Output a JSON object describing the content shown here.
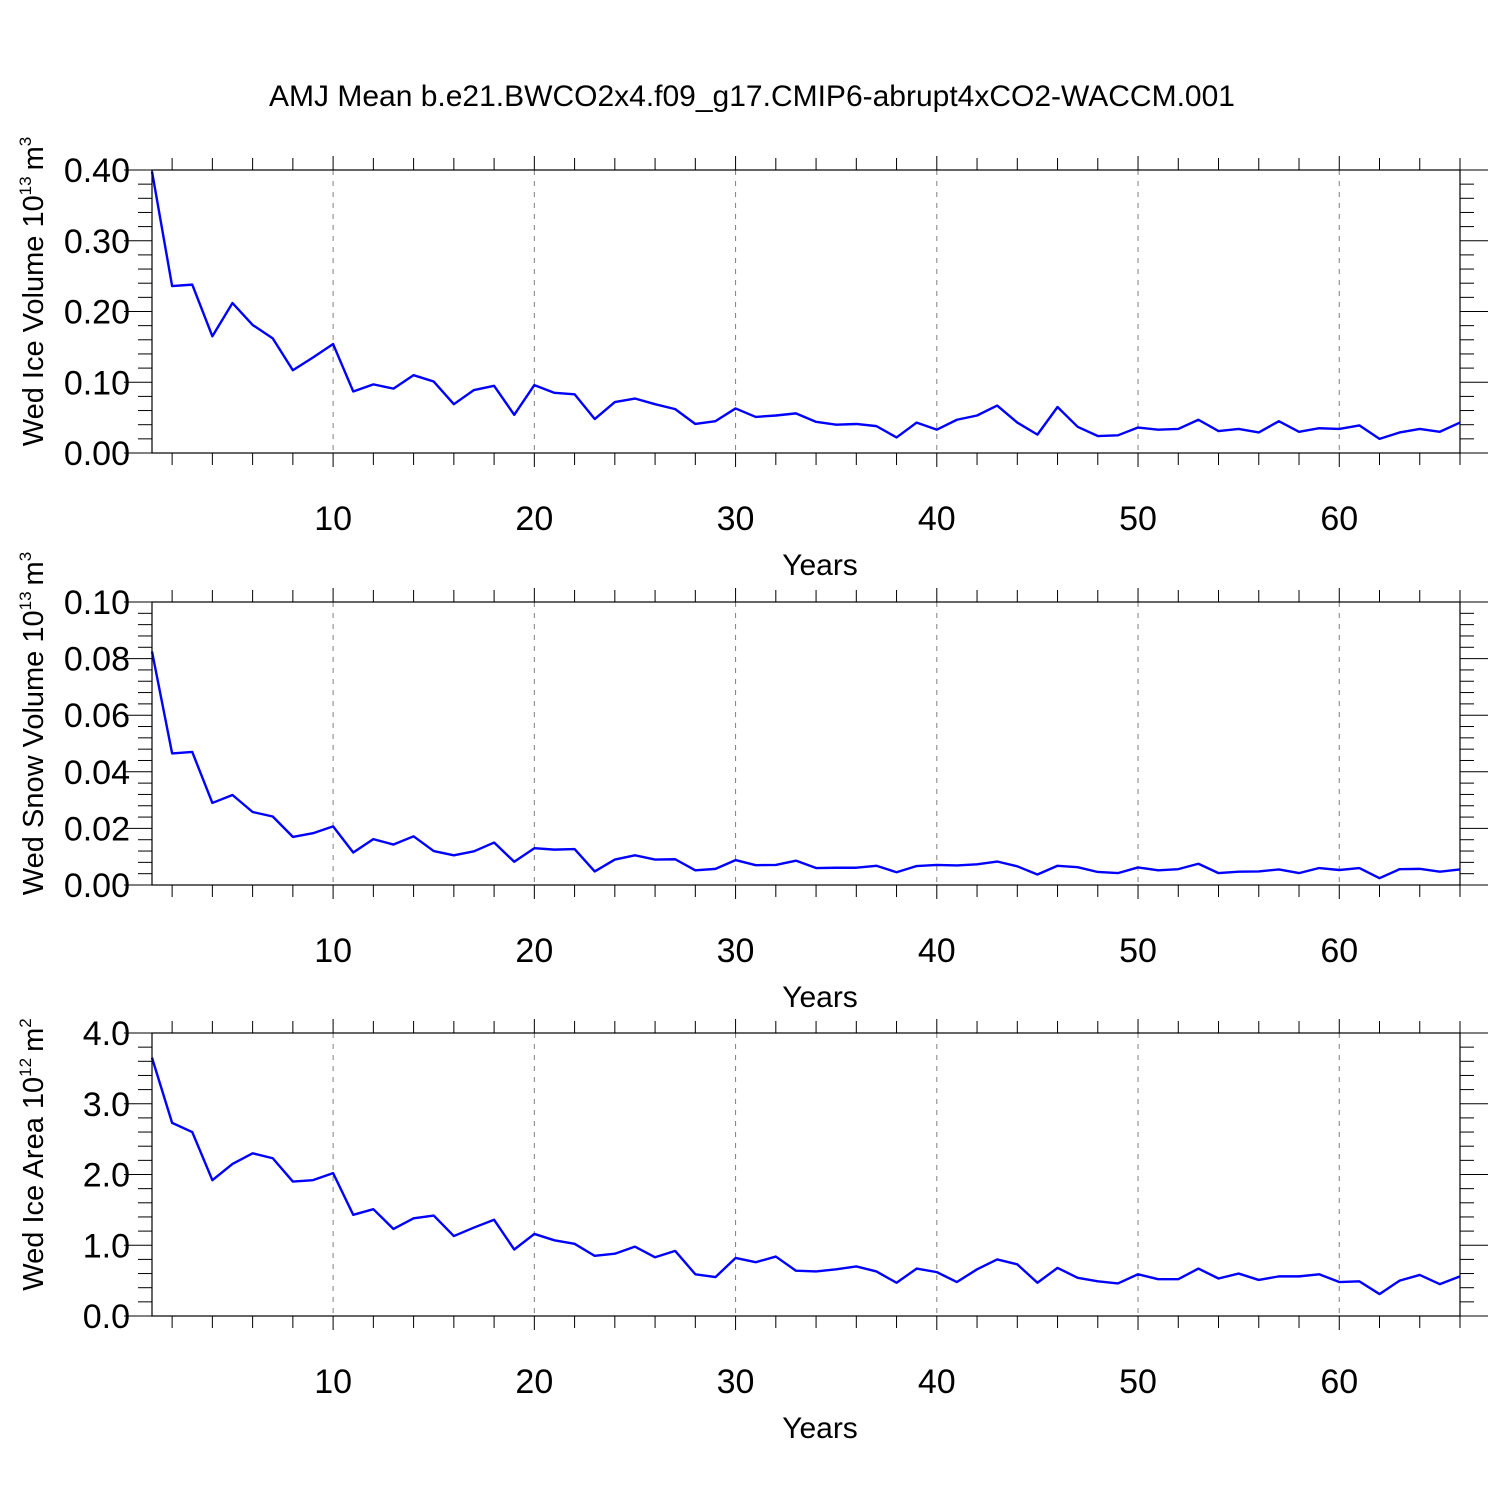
{
  "figure_title": "AMJ Mean b.e21.BWCO2x4.f09_g17.CMIP6-abrupt4xCO2-WACCM.001",
  "line_color": "#0000ff",
  "chart_data": [
    {
      "type": "line",
      "name": "ice-volume",
      "ylabel": {
        "text": "Wed Ice Volume 10",
        "exponent": "13",
        "unit": "m",
        "unit_exponent": "3"
      },
      "xlabel": "Years",
      "xlim": [
        1,
        66
      ],
      "ylim": [
        0,
        0.4
      ],
      "yticks": [
        "0.00",
        "0.10",
        "0.20",
        "0.30",
        "0.40"
      ],
      "ytick_values": [
        0,
        0.1,
        0.2,
        0.3,
        0.4
      ],
      "xticks": [
        "10",
        "20",
        "30",
        "40",
        "50",
        "60"
      ],
      "xtick_values": [
        10,
        20,
        30,
        40,
        50,
        60
      ],
      "grid": "vertical dashed at major x ticks",
      "x_start": 1,
      "values": [
        0.398,
        0.236,
        0.238,
        0.165,
        0.212,
        0.181,
        0.162,
        0.117,
        0.135,
        0.154,
        0.087,
        0.097,
        0.091,
        0.11,
        0.101,
        0.069,
        0.089,
        0.095,
        0.054,
        0.096,
        0.085,
        0.083,
        0.048,
        0.072,
        0.077,
        0.069,
        0.062,
        0.041,
        0.045,
        0.063,
        0.051,
        0.053,
        0.056,
        0.044,
        0.04,
        0.041,
        0.038,
        0.022,
        0.043,
        0.033,
        0.047,
        0.053,
        0.067,
        0.043,
        0.026,
        0.065,
        0.037,
        0.024,
        0.025,
        0.036,
        0.033,
        0.034,
        0.047,
        0.031,
        0.034,
        0.029,
        0.045,
        0.03,
        0.035,
        0.034,
        0.039,
        0.02,
        0.029,
        0.034,
        0.03,
        0.043
      ]
    },
    {
      "type": "line",
      "name": "snow-volume",
      "ylabel": {
        "text": "Wed Snow Volume 10",
        "exponent": "13",
        "unit": "m",
        "unit_exponent": "3"
      },
      "xlabel": "Years",
      "xlim": [
        1,
        66
      ],
      "ylim": [
        0,
        0.1
      ],
      "yticks": [
        "0.00",
        "0.02",
        "0.04",
        "0.06",
        "0.08",
        "0.10"
      ],
      "ytick_values": [
        0,
        0.02,
        0.04,
        0.06,
        0.08,
        0.1
      ],
      "xticks": [
        "10",
        "20",
        "30",
        "40",
        "50",
        "60"
      ],
      "xtick_values": [
        10,
        20,
        30,
        40,
        50,
        60
      ],
      "grid": "vertical dashed at major x ticks",
      "x_start": 1,
      "values": [
        0.0825,
        0.0465,
        0.047,
        0.029,
        0.0318,
        0.0258,
        0.0242,
        0.017,
        0.0183,
        0.0207,
        0.0115,
        0.0162,
        0.0143,
        0.0172,
        0.012,
        0.0105,
        0.0119,
        0.015,
        0.0082,
        0.013,
        0.0125,
        0.0127,
        0.0048,
        0.009,
        0.0105,
        0.009,
        0.0091,
        0.0052,
        0.0057,
        0.0088,
        0.007,
        0.0071,
        0.0086,
        0.006,
        0.0061,
        0.0061,
        0.0068,
        0.0045,
        0.0067,
        0.0071,
        0.0069,
        0.0073,
        0.0083,
        0.0066,
        0.0037,
        0.0068,
        0.0063,
        0.0046,
        0.0042,
        0.0062,
        0.0052,
        0.0056,
        0.0075,
        0.0042,
        0.0047,
        0.0048,
        0.0055,
        0.0042,
        0.006,
        0.0053,
        0.006,
        0.0024,
        0.0056,
        0.0057,
        0.0047,
        0.0055
      ]
    },
    {
      "type": "line",
      "name": "ice-area",
      "ylabel": {
        "text": "Wed Ice Area 10",
        "exponent": "12",
        "unit": "m",
        "unit_exponent": "2"
      },
      "xlabel": "Years",
      "xlim": [
        1,
        66
      ],
      "ylim": [
        0,
        4.0
      ],
      "yticks": [
        "0.0",
        "1.0",
        "2.0",
        "3.0",
        "4.0"
      ],
      "ytick_values": [
        0,
        1,
        2,
        3,
        4
      ],
      "xticks": [
        "10",
        "20",
        "30",
        "40",
        "50",
        "60"
      ],
      "xtick_values": [
        10,
        20,
        30,
        40,
        50,
        60
      ],
      "grid": "vertical dashed at major x ticks",
      "x_start": 1,
      "values": [
        3.65,
        2.73,
        2.6,
        1.92,
        2.15,
        2.3,
        2.23,
        1.9,
        1.92,
        2.02,
        1.43,
        1.51,
        1.23,
        1.38,
        1.42,
        1.13,
        1.25,
        1.36,
        0.94,
        1.16,
        1.07,
        1.02,
        0.85,
        0.88,
        0.98,
        0.83,
        0.92,
        0.59,
        0.55,
        0.82,
        0.76,
        0.84,
        0.64,
        0.63,
        0.66,
        0.7,
        0.63,
        0.47,
        0.67,
        0.62,
        0.48,
        0.66,
        0.8,
        0.73,
        0.47,
        0.68,
        0.54,
        0.49,
        0.46,
        0.59,
        0.52,
        0.52,
        0.67,
        0.53,
        0.6,
        0.51,
        0.56,
        0.56,
        0.59,
        0.48,
        0.49,
        0.31,
        0.5,
        0.58,
        0.45,
        0.56
      ]
    }
  ]
}
